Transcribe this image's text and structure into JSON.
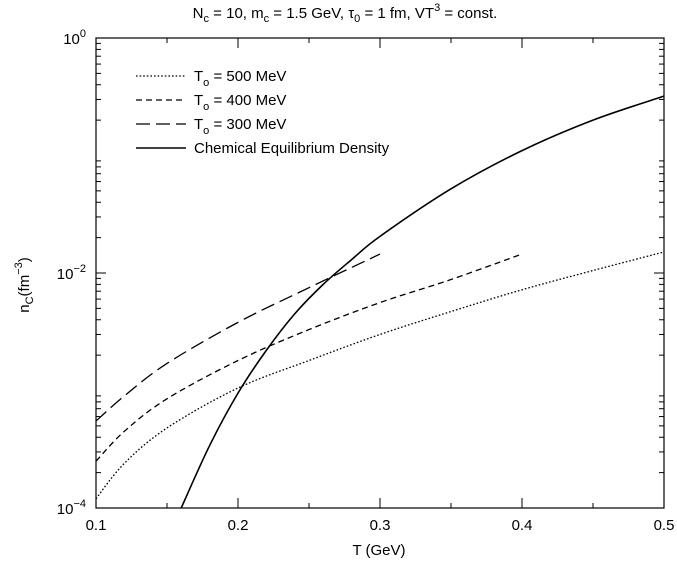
{
  "chart_data": {
    "type": "line",
    "title": {
      "parts": [
        {
          "t": "N"
        },
        {
          "t": "c",
          "sub": true
        },
        {
          "t": " = 10, m"
        },
        {
          "t": "c",
          "sub": true
        },
        {
          "t": " = 1.5 GeV, "
        },
        {
          "t": "τ"
        },
        {
          "t": "0",
          "sub": true
        },
        {
          "t": " = 1 fm, VT"
        },
        {
          "t": "3",
          "sup": true
        },
        {
          "t": " = const."
        }
      ]
    },
    "xlabel": "T (GeV)",
    "ylabel": {
      "parts": [
        {
          "t": "n"
        },
        {
          "t": "C",
          "sub": true
        },
        {
          "t": "(fm"
        },
        {
          "t": "−3",
          "sup": true
        },
        {
          "t": ")"
        }
      ]
    },
    "xlim": [
      0.1,
      0.5
    ],
    "ylim": [
      0.0001,
      1
    ],
    "yscale": "log",
    "grid": false,
    "legend_position": "top-left",
    "x_ticks": [
      {
        "value": 0.1,
        "label": "0.1"
      },
      {
        "value": 0.2,
        "label": "0.2"
      },
      {
        "value": 0.3,
        "label": "0.3"
      },
      {
        "value": 0.4,
        "label": "0.4"
      },
      {
        "value": 0.5,
        "label": "0.5"
      }
    ],
    "y_ticks": [
      {
        "value": 0.0001,
        "base": "10",
        "exp": "−4"
      },
      {
        "value": 0.01,
        "base": "10",
        "exp": "−2"
      },
      {
        "value": 1,
        "base": "10",
        "exp": "0"
      }
    ],
    "series": [
      {
        "name": {
          "parts": [
            {
              "t": "T"
            },
            {
              "t": "o",
              "sub": true
            },
            {
              "t": " = 500 MeV"
            }
          ]
        },
        "dash": "dotted",
        "x": [
          0.1,
          0.12,
          0.15,
          0.2,
          0.25,
          0.3,
          0.35,
          0.4,
          0.45,
          0.5
        ],
        "y": [
          0.00012,
          0.00024,
          0.00048,
          0.00105,
          0.0018,
          0.003,
          0.0047,
          0.0072,
          0.0105,
          0.0151
        ]
      },
      {
        "name": {
          "parts": [
            {
              "t": "T"
            },
            {
              "t": "o",
              "sub": true
            },
            {
              "t": " = 400 MeV"
            }
          ]
        },
        "dash": "short",
        "x": [
          0.1,
          0.12,
          0.15,
          0.2,
          0.25,
          0.3,
          0.35,
          0.4
        ],
        "y": [
          0.00025,
          0.00045,
          0.00085,
          0.0018,
          0.0033,
          0.0056,
          0.0088,
          0.0145
        ]
      },
      {
        "name": {
          "parts": [
            {
              "t": "T"
            },
            {
              "t": "o",
              "sub": true
            },
            {
              "t": " = 300 MeV"
            }
          ]
        },
        "dash": "long",
        "x": [
          0.1,
          0.12,
          0.15,
          0.2,
          0.25,
          0.3
        ],
        "y": [
          0.00055,
          0.0009,
          0.0017,
          0.0038,
          0.0075,
          0.0145
        ]
      },
      {
        "name": {
          "parts": [
            {
              "t": "Chemical Equilibrium Density"
            }
          ]
        },
        "dash": "solid",
        "x": [
          0.16,
          0.18,
          0.2,
          0.22,
          0.24,
          0.26,
          0.28,
          0.3,
          0.35,
          0.4,
          0.45,
          0.5
        ],
        "y": [
          0.0001,
          0.00034,
          0.00095,
          0.0022,
          0.0045,
          0.008,
          0.013,
          0.0205,
          0.052,
          0.11,
          0.2,
          0.32
        ]
      }
    ]
  }
}
